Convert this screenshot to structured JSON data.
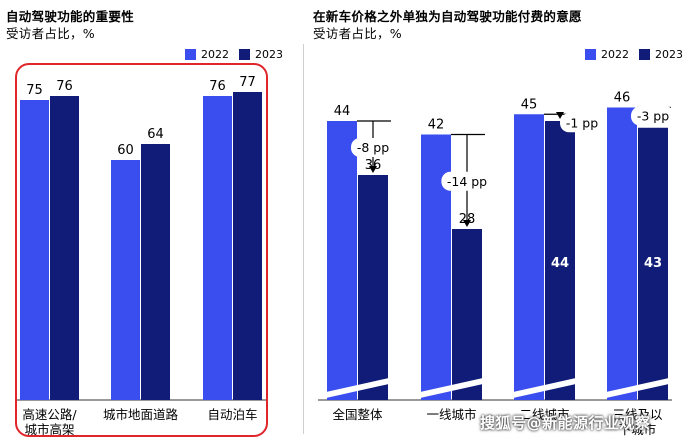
{
  "left": {
    "title": "自动驾驶功能的重要性",
    "subtitle": "受访者占比，%",
    "legend": [
      "2022",
      "2023"
    ]
  },
  "right": {
    "title": "在新车价格之外单独为自动驾驶功能付费的意愿",
    "subtitle": "受访者占比，%",
    "legend": [
      "2022",
      "2023"
    ]
  },
  "colors": {
    "c2022": "#3a4dee",
    "c2023": "#101c78",
    "highlight": "#e0262b"
  },
  "watermark": "搜狐号@新能源行业观察",
  "chart_data": [
    {
      "type": "bar",
      "title": "自动驾驶功能的重要性",
      "subtitle": "受访者占比，%",
      "categories": [
        "高速公路/城市高架",
        "城市地面道路",
        "自动泊车"
      ],
      "category_lines": [
        [
          "高速公路/",
          "城市高架"
        ],
        [
          "城市地面道路"
        ],
        [
          "自动泊车"
        ]
      ],
      "series": [
        {
          "name": "2022",
          "values": [
            75,
            60,
            76
          ]
        },
        {
          "name": "2023",
          "values": [
            76,
            64,
            77
          ]
        }
      ],
      "legend_position": "top-right",
      "grid": false
    },
    {
      "type": "bar",
      "title": "在新车价格之外单独为自动驾驶功能付费的意愿",
      "subtitle": "受访者占比，%",
      "categories": [
        "全国整体",
        "一线城市",
        "二线城市",
        "三线及以下城市"
      ],
      "category_lines": [
        [
          "全国整体"
        ],
        [
          "一线城市"
        ],
        [
          "二线城市"
        ],
        [
          "三线及以",
          "下城市"
        ]
      ],
      "series": [
        {
          "name": "2022",
          "values": [
            44,
            42,
            45,
            46
          ]
        },
        {
          "name": "2023",
          "values": [
            36,
            28,
            44,
            43
          ]
        }
      ],
      "annotations": [
        "-8 pp",
        "-14 pp",
        "-1 pp",
        "-3 pp"
      ],
      "axis_break": true,
      "legend_position": "top-right",
      "grid": false
    }
  ]
}
